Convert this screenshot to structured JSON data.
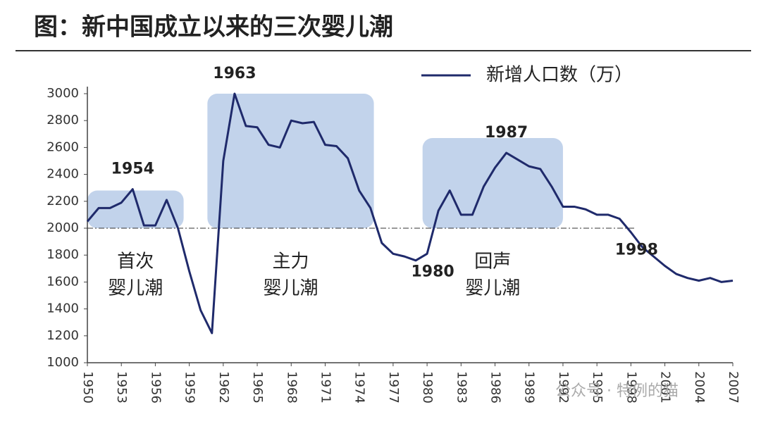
{
  "chart_data": {
    "type": "line",
    "title": "图：新中国成立以来的三次婴儿潮",
    "x": [
      1950,
      1951,
      1952,
      1953,
      1954,
      1955,
      1956,
      1957,
      1958,
      1959,
      1960,
      1961,
      1962,
      1963,
      1964,
      1965,
      1966,
      1967,
      1968,
      1969,
      1970,
      1971,
      1972,
      1973,
      1974,
      1975,
      1976,
      1977,
      1978,
      1979,
      1980,
      1981,
      1982,
      1983,
      1984,
      1985,
      1986,
      1987,
      1988,
      1989,
      1990,
      1991,
      1992,
      1993,
      1994,
      1995,
      1996,
      1997,
      1998,
      1999,
      2000,
      2001,
      2002,
      2003,
      2004,
      2005,
      2006,
      2007
    ],
    "series": [
      {
        "name": "新增人口数（万）",
        "color": "#1f2a6b",
        "values": [
          2050,
          2150,
          2150,
          2190,
          2290,
          2020,
          2020,
          2210,
          2000,
          1680,
          1390,
          1220,
          2500,
          3000,
          2760,
          2750,
          2620,
          2600,
          2800,
          2780,
          2790,
          2620,
          2610,
          2520,
          2280,
          2150,
          1890,
          1810,
          1790,
          1760,
          1810,
          2130,
          2280,
          2100,
          2100,
          2310,
          2450,
          2560,
          2510,
          2460,
          2440,
          2310,
          2160,
          2160,
          2140,
          2100,
          2100,
          2070,
          1970,
          1860,
          1790,
          1720,
          1660,
          1630,
          1610,
          1630,
          1600,
          1610
        ]
      }
    ],
    "xlim": [
      1950,
      2007
    ],
    "xticks": [
      1950,
      1953,
      1956,
      1959,
      1962,
      1965,
      1968,
      1971,
      1974,
      1977,
      1980,
      1983,
      1986,
      1989,
      1992,
      1995,
      1998,
      2001,
      2004,
      2007
    ],
    "ylim": [
      1000,
      3000
    ],
    "yticks": [
      1000,
      1200,
      1400,
      1600,
      1800,
      2000,
      2200,
      2400,
      2600,
      2800,
      3000
    ],
    "reference_line": 2000,
    "legend": "top-right",
    "regions": [
      {
        "label": [
          "首次",
          "婴儿潮"
        ],
        "xlim": [
          1950,
          1958.5
        ],
        "ylim": [
          2000,
          2280
        ],
        "color": "#b7cbe8"
      },
      {
        "label": [
          "主力",
          "婴儿潮"
        ],
        "xlim": [
          1960.6,
          1975.3
        ],
        "ylim": [
          2000,
          3000
        ],
        "color": "#b7cbe8"
      },
      {
        "label": [
          "回声",
          "婴儿潮"
        ],
        "xlim": [
          1979.6,
          1992
        ],
        "ylim": [
          2000,
          2670
        ],
        "color": "#b7cbe8"
      }
    ],
    "point_labels": [
      {
        "label": "1954",
        "x": 1954,
        "position": "above"
      },
      {
        "label": "1963",
        "x": 1963,
        "position": "above"
      },
      {
        "label": "1987",
        "x": 1987,
        "position": "above"
      },
      {
        "label": "1980",
        "x": 1980,
        "position": "below"
      },
      {
        "label": "1998",
        "x": 1998,
        "position": "below"
      }
    ],
    "watermark": "公众号 · 特例的猫"
  }
}
